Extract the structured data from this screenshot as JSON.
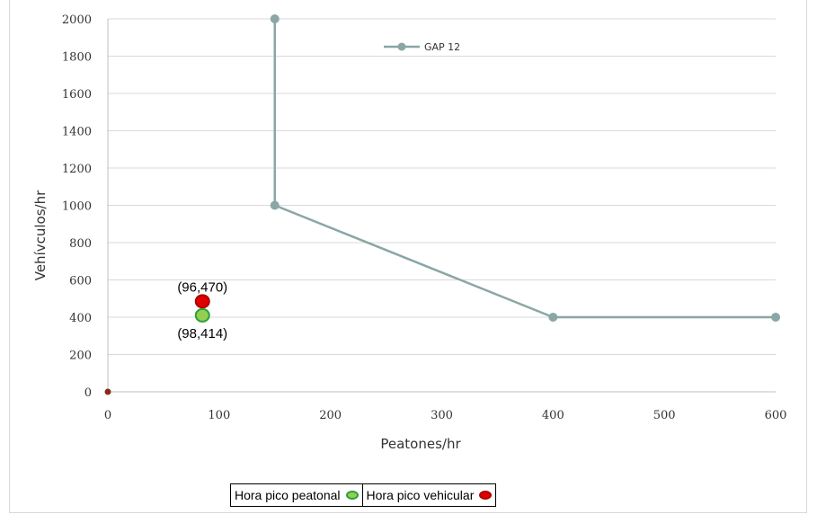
{
  "chart_data": {
    "type": "line",
    "xlabel": "Peatones/hr",
    "ylabel": "Vehívculos/hr",
    "xlim": [
      0,
      600
    ],
    "ylim": [
      0,
      2000
    ],
    "xticks": [
      0,
      100,
      200,
      300,
      400,
      500,
      600
    ],
    "yticks": [
      0,
      200,
      400,
      600,
      800,
      1000,
      1200,
      1400,
      1600,
      1800,
      2000
    ],
    "grid": "horizontal",
    "legend_position": "top",
    "series": [
      {
        "name": "GAP 12",
        "color": "#8aa6a6",
        "points": [
          [
            150,
            2000
          ],
          [
            150,
            1000
          ],
          [
            400,
            400
          ],
          [
            600,
            400
          ]
        ]
      }
    ],
    "origin_point": {
      "x": 0,
      "y": 0,
      "color": "#8b2a1a"
    },
    "annotations": [
      {
        "label": "(96,470)",
        "x": 85,
        "y": 485,
        "fill": "#e00000",
        "stroke": "#b00000",
        "label_position": "above"
      },
      {
        "label": "(98,414)",
        "x": 85,
        "y": 410,
        "fill": "#92d050",
        "stroke": "#2e9e3e",
        "label_position": "below"
      }
    ]
  },
  "bottom_legend": {
    "items": [
      {
        "label": "Hora pico peatonal",
        "fill": "#92d050",
        "stroke": "#2e9e3e"
      },
      {
        "label": "Hora pico vehicular",
        "fill": "#e00000",
        "stroke": "#b00000"
      }
    ]
  }
}
